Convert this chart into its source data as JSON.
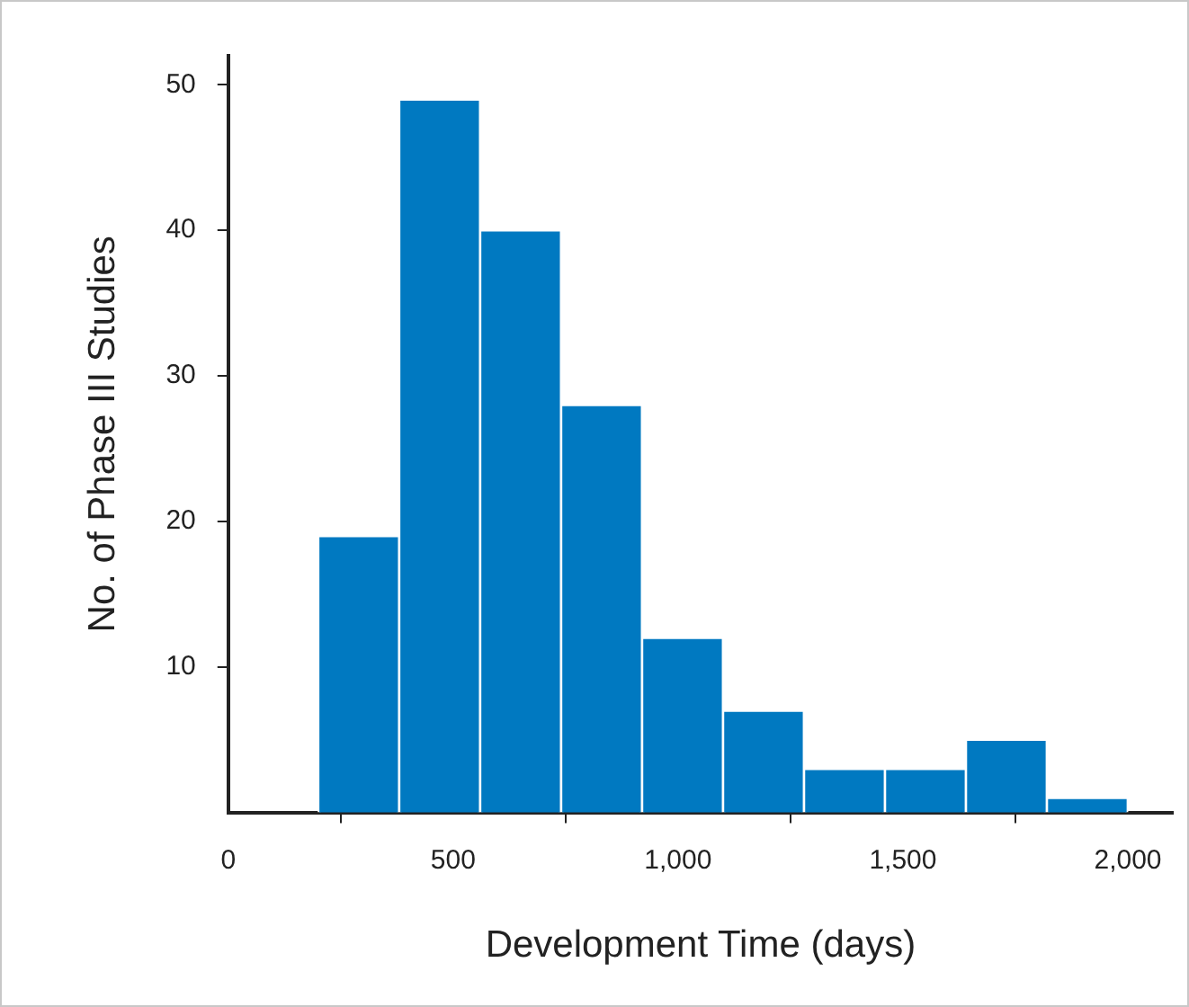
{
  "chart_data": {
    "type": "histogram",
    "xlabel": "Development Time (days)",
    "ylabel": "No. of Phase III Studies",
    "bins": [
      200,
      380,
      560,
      740,
      920,
      1100,
      1280,
      1460,
      1640,
      1820,
      2000
    ],
    "values": [
      19,
      49,
      40,
      28,
      12,
      7,
      3,
      3,
      5,
      1
    ],
    "color": "#0079c1",
    "xlim": [
      0,
      2100
    ],
    "xticks": [
      0,
      {
        "value": 500,
        "label": "500"
      },
      {
        "value": 1000,
        "label": "1,000"
      },
      {
        "value": 1500,
        "label": "1,500"
      },
      {
        "value": 2000,
        "label": "2,000"
      }
    ],
    "ylim": [
      0,
      52
    ],
    "yticks": [
      10,
      20,
      30,
      40,
      50
    ],
    "grid": false,
    "legend": false
  }
}
